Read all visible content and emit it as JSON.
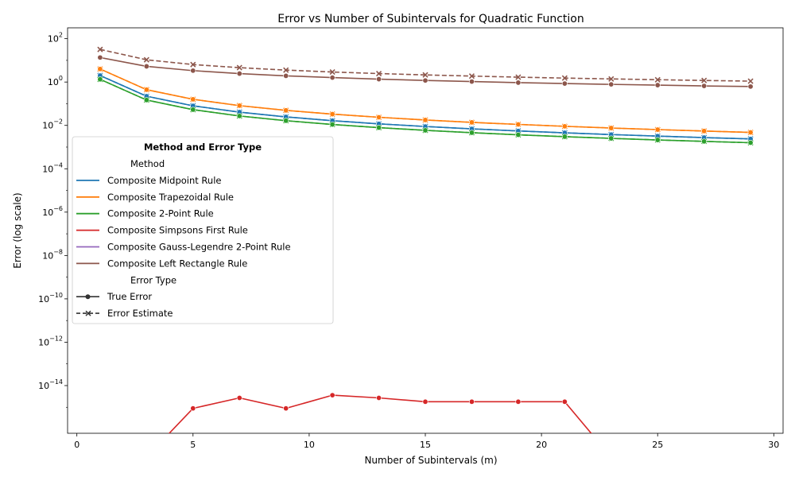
{
  "chart_data": {
    "type": "line",
    "title": "Error vs Number of Subintervals for Quadratic Function",
    "xlabel": "Number of Subintervals (m)",
    "ylabel": "Error (log scale)",
    "xlim": [
      -0.4,
      30.4
    ],
    "ylim_log10": [
      -16.2,
      2.5
    ],
    "yscale": "log",
    "x_ticks": [
      0,
      5,
      10,
      15,
      20,
      25,
      30
    ],
    "y_ticks_exp": [
      2,
      0,
      -2,
      -4,
      -6,
      -8,
      -10,
      -12,
      -14
    ],
    "y_tick_base": "10",
    "grid": false,
    "legend": {
      "title": "Method and Error Type",
      "placement": "center-left",
      "method_header": "Method",
      "errortype_header": "Error Type",
      "true_label": "True Error",
      "estimate_label": "Error Estimate"
    },
    "x": [
      1,
      3,
      5,
      7,
      9,
      11,
      13,
      15,
      17,
      19,
      21,
      23,
      25,
      27,
      29
    ],
    "series": [
      {
        "name": "Composite Midpoint Rule",
        "color": "#1f77b4",
        "true_error": [
          2.0,
          0.222,
          0.08,
          0.0408,
          0.0247,
          0.0165,
          0.0118,
          0.00889,
          0.00692,
          0.00554,
          0.00454,
          0.00378,
          0.0032,
          0.00274,
          0.00238
        ],
        "error_estimate": [
          2.0,
          0.222,
          0.08,
          0.0408,
          0.0247,
          0.0165,
          0.0118,
          0.00889,
          0.00692,
          0.00554,
          0.00454,
          0.00378,
          0.0032,
          0.00274,
          0.00238
        ]
      },
      {
        "name": "Composite Trapezoidal Rule",
        "color": "#ff7f0e",
        "true_error": [
          4.0,
          0.444,
          0.16,
          0.0816,
          0.0494,
          0.0331,
          0.0237,
          0.0178,
          0.0138,
          0.0111,
          0.00907,
          0.00756,
          0.0064,
          0.00549,
          0.00476
        ],
        "error_estimate": [
          4.0,
          0.444,
          0.16,
          0.0816,
          0.0494,
          0.0331,
          0.0237,
          0.0178,
          0.0138,
          0.0111,
          0.00907,
          0.00756,
          0.0064,
          0.00549,
          0.00476
        ]
      },
      {
        "name": "Composite 2-Point Rule",
        "color": "#2ca02c",
        "true_error": [
          1.333,
          0.148,
          0.0533,
          0.0272,
          0.0165,
          0.011,
          0.00789,
          0.00593,
          0.00461,
          0.00369,
          0.00302,
          0.00252,
          0.00213,
          0.00183,
          0.00159
        ],
        "error_estimate": [
          1.333,
          0.148,
          0.0533,
          0.0272,
          0.0165,
          0.011,
          0.00789,
          0.00593,
          0.00461,
          0.00369,
          0.00302,
          0.00252,
          0.00213,
          0.00183,
          0.00159
        ]
      },
      {
        "name": "Composite Simpsons First Rule",
        "color": "#d62728",
        "true_error": [
          0,
          0,
          8.9e-16,
          2.7e-15,
          8.9e-16,
          3.6e-15,
          2.7e-15,
          1.8e-15,
          1.8e-15,
          1.8e-15,
          1.8e-15,
          0,
          0,
          0,
          0
        ],
        "error_estimate": [
          0,
          0,
          0,
          0,
          0,
          0,
          0,
          0,
          0,
          0,
          0,
          0,
          0,
          0,
          0
        ]
      },
      {
        "name": "Composite Gauss-Legendre 2-Point Rule",
        "color": "#9467bd",
        "true_error": [],
        "error_estimate": []
      },
      {
        "name": "Composite Left Rectangle Rule",
        "color": "#8c564b",
        "true_error": [
          13.5,
          5.3,
          3.35,
          2.45,
          1.93,
          1.6,
          1.36,
          1.18,
          1.05,
          0.94,
          0.85,
          0.78,
          0.72,
          0.66,
          0.62
        ],
        "error_estimate": [
          32.0,
          10.6,
          6.4,
          4.6,
          3.55,
          2.9,
          2.46,
          2.13,
          1.88,
          1.68,
          1.52,
          1.39,
          1.28,
          1.18,
          1.1
        ]
      }
    ]
  }
}
